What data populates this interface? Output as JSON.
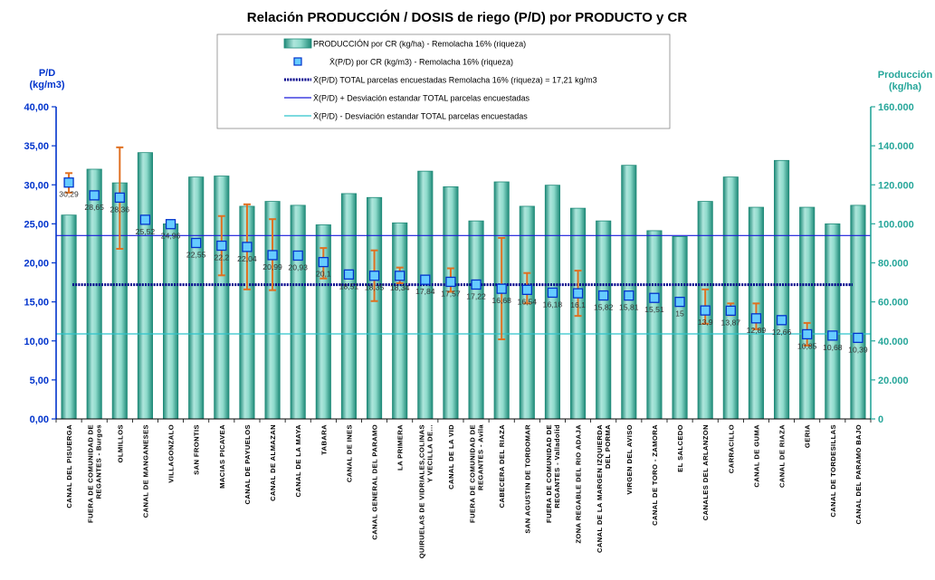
{
  "chart_data": {
    "type": "bar",
    "title": "Relación PRODUCCIÓN / DOSIS de riego (P/D) por PRODUCTO y CR",
    "y_left_label": [
      "P/D",
      "(kg/m3)"
    ],
    "y_right_label": [
      "Producción",
      "(kg/ha)"
    ],
    "y_left_range": [
      0,
      40
    ],
    "y_right_range": [
      0,
      160000
    ],
    "y_left_ticks": [
      "0,00",
      "5,00",
      "10,00",
      "15,00",
      "20,00",
      "25,00",
      "30,00",
      "35,00",
      "40,00"
    ],
    "y_right_ticks": [
      "0",
      "20.000",
      "40.000",
      "60.000",
      "80.000",
      "100.000",
      "120.000",
      "140.000",
      "160.000"
    ],
    "categories": [
      [
        "CANAL DEL PISUERGA"
      ],
      [
        "FUERA DE COMUNIDAD DE",
        "REGANTES - Burgos"
      ],
      [
        "OLMILLOS"
      ],
      [
        "CANAL DE MANGANESES"
      ],
      [
        "VILLAGONZALO"
      ],
      [
        "SAN FRONTIS"
      ],
      [
        "MACIAS PICAVEA"
      ],
      [
        "CANAL DE PAYUELOS"
      ],
      [
        "CANAL DE ALMAZAN"
      ],
      [
        "CANAL DE LA MAYA"
      ],
      [
        "TABARA"
      ],
      [
        "CANAL DE INES"
      ],
      [
        "CANAL GENERAL DEL PARAMO"
      ],
      [
        "LA PRIMERA"
      ],
      [
        "QUIRUELAS DE VIDRIALES,COLINAS",
        "Y VECILLA DE..."
      ],
      [
        "CANAL DE LA VID"
      ],
      [
        "FUERA DE COMUNIDAD DE",
        "REGANTES - Avila"
      ],
      [
        "CABECERA DEL RIAZA"
      ],
      [
        "SAN AGUSTIN DE TORDOMAR"
      ],
      [
        "FUERA DE COMUNIDAD DE",
        "REGANTES - Valladolid"
      ],
      [
        "ZONA REGABLE DEL RIO ADAJA"
      ],
      [
        "CANAL DE LA MARGEN IZQUIERDA",
        "DEL PORMA"
      ],
      [
        "VIRGEN DEL AVISO"
      ],
      [
        "CANAL DE TORO - ZAMORA"
      ],
      [
        "EL SALCEDO"
      ],
      [
        "CANALES DEL ARLANZON"
      ],
      [
        "CARRACILLO"
      ],
      [
        "CANAL DE GUMA"
      ],
      [
        "CANAL DE RIAZA"
      ],
      [
        "GERIA"
      ],
      [
        "CANAL DE TORDESILLAS"
      ],
      [
        "CANAL DEL PARAMO BAJO"
      ]
    ],
    "series": [
      {
        "name": "PRODUCCIÓN por CR (kg/ha) - Remolacha 16% (riqueza)",
        "axis": "right",
        "type": "bar",
        "values": [
          104500,
          128000,
          121000,
          136500,
          100000,
          124000,
          124500,
          109000,
          111500,
          109500,
          99500,
          115500,
          113500,
          100500,
          127000,
          119000,
          101500,
          121500,
          109000,
          119800,
          108000,
          101500,
          130000,
          96500,
          93500,
          111500,
          124000,
          108500,
          132500,
          108500,
          100000,
          109500
        ]
      },
      {
        "name": "X̄(P/D) por CR (kg/m3) - Remolacha 16% (riqueza)",
        "axis": "left",
        "type": "scatter",
        "values": [
          30.29,
          28.65,
          28.36,
          25.52,
          24.96,
          22.55,
          22.2,
          22.04,
          20.99,
          20.93,
          20.1,
          18.51,
          18.35,
          18.34,
          17.84,
          17.57,
          17.22,
          16.68,
          16.54,
          16.18,
          16.1,
          15.82,
          15.81,
          15.51,
          15.0,
          13.9,
          13.87,
          12.89,
          12.66,
          10.85,
          10.68,
          10.39
        ],
        "labels": [
          "30,29",
          "28,65",
          "28,36",
          "25,52",
          "24,96",
          "22,55",
          "22,2",
          "22,04",
          "20,99",
          "20,93",
          "20,1",
          "18,51",
          "18,35",
          "18,34",
          "17,84",
          "17,57",
          "17,22",
          "16,68",
          "16,54",
          "16,18",
          "16,1",
          "15,82",
          "15,81",
          "15,51",
          "15",
          "13,9",
          "13,87",
          "12,89",
          "12,66",
          "10,85",
          "10,68",
          "10,39"
        ],
        "error_low": [
          29.0,
          null,
          21.8,
          null,
          null,
          null,
          18.4,
          16.6,
          16.5,
          null,
          18.0,
          null,
          15.1,
          17.4,
          null,
          16.3,
          null,
          10.2,
          14.8,
          null,
          13.2,
          null,
          null,
          null,
          null,
          12.2,
          13.3,
          11.5,
          null,
          9.4,
          null,
          null
        ],
        "error_high": [
          31.5,
          null,
          34.8,
          null,
          null,
          null,
          26.0,
          27.5,
          25.6,
          null,
          21.9,
          null,
          21.6,
          19.4,
          null,
          19.3,
          null,
          23.2,
          18.7,
          null,
          19.0,
          null,
          null,
          null,
          null,
          16.6,
          14.8,
          14.8,
          null,
          12.3,
          null,
          null
        ]
      },
      {
        "name": "X̄(P/D) TOTAL parcelas encuestadas Remolacha 16% (riqueza) = 17,21 kg/m3",
        "axis": "left",
        "type": "hline",
        "value": 17.21
      },
      {
        "name": "X̄(P/D) + Desviación estandar TOTAL parcelas encuestadas",
        "axis": "left",
        "type": "hline",
        "value": 23.5
      },
      {
        "name": "X̄(P/D) - Desviación estandar TOTAL parcelas encuestadas",
        "axis": "left",
        "type": "hline",
        "value": 10.9
      }
    ],
    "colors": {
      "bar_fill": "#5cc7b4",
      "bar_edge": "#1f8a78",
      "marker_fill": "#66ccff",
      "marker_edge": "#0033cc",
      "error": "#e07020",
      "mean_line": "#00008b",
      "plus_sd": "#1a1adb",
      "minus_sd": "#2ec4cc",
      "left_axis": "#0033cc",
      "right_axis": "#26a69a"
    },
    "legend_position": "top-center",
    "grid": false
  }
}
